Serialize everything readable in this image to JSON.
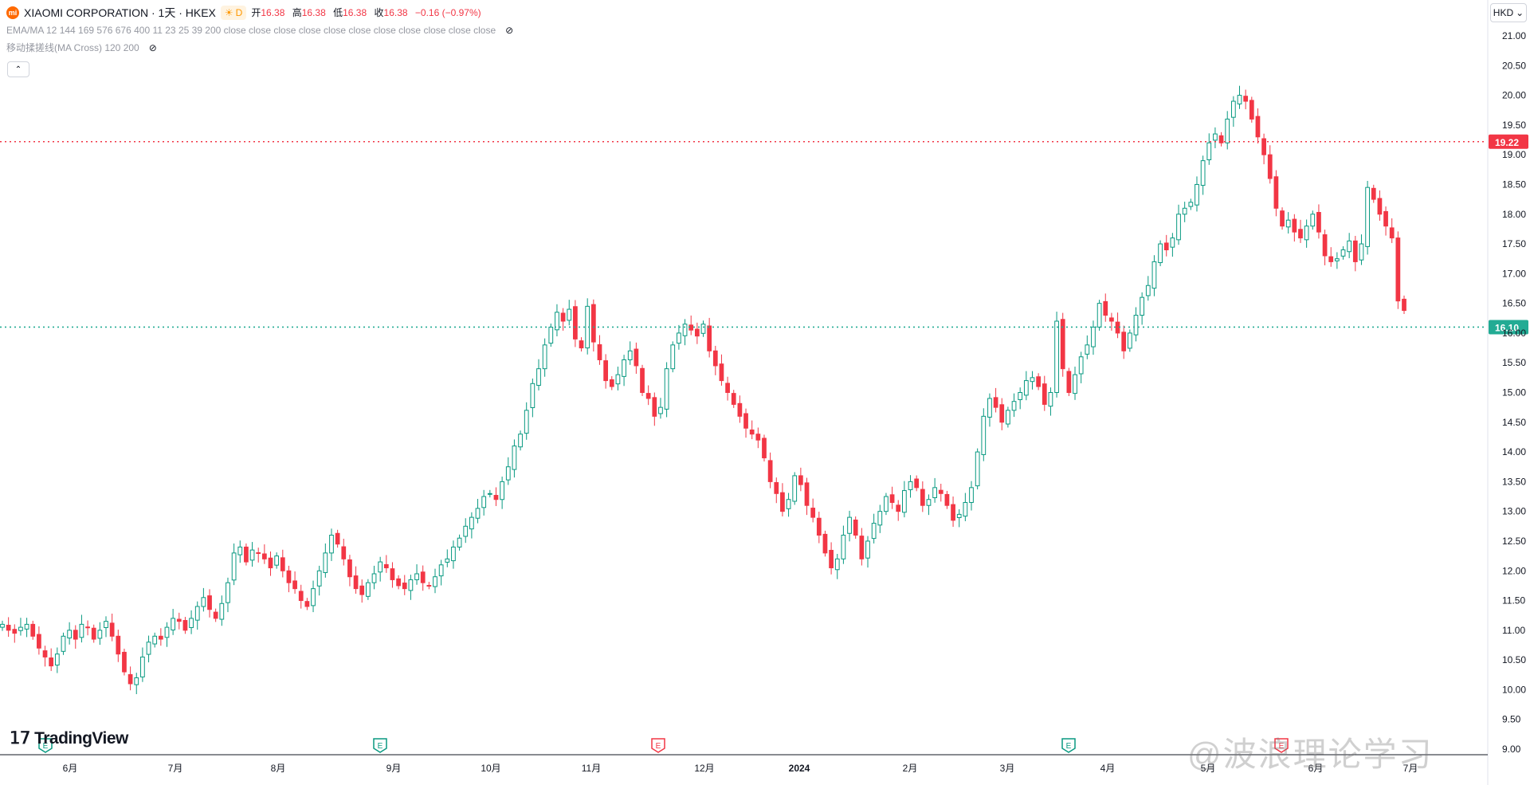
{
  "header": {
    "logo_text": "mi",
    "symbol_title": "XIAOMI CORPORATION · 1天 · HKEX",
    "badge_label": "D",
    "ohlc": {
      "open_label": "开",
      "open_value": "16.38",
      "high_label": "高",
      "high_value": "16.38",
      "low_label": "低",
      "low_value": "16.38",
      "close_label": "收",
      "close_value": "16.38",
      "change": "−0.16 (−0.97%)"
    },
    "indicator_1": "EMA/MA 12 144 169 576 676 400 11 23 25 39 200 close close close close close close close close close close close",
    "indicator_2": "移动揉搓线(MA Cross) 120 200",
    "collapse_symbol": "⌃",
    "currency_label": "HKD",
    "currency_chevron": "⌄",
    "eye_symbol": "⊘"
  },
  "branding": {
    "tradingview": "TradingView",
    "watermark": "@波浪理论学习"
  },
  "colors": {
    "up": "#089981",
    "down": "#f23645",
    "resistance": "#f23645",
    "support": "#089981"
  },
  "chart_data": {
    "type": "candlestick",
    "interval": "1天",
    "ylim": [
      9.0,
      21.5
    ],
    "y_ticks": [
      "21.00",
      "20.50",
      "20.00",
      "19.50",
      "19.00",
      "18.50",
      "18.00",
      "17.50",
      "17.00",
      "16.50",
      "16.00",
      "15.50",
      "15.00",
      "14.50",
      "14.00",
      "13.50",
      "13.00",
      "12.50",
      "12.00",
      "11.50",
      "11.00",
      "10.50",
      "10.00",
      "9.50",
      "9.00"
    ],
    "x_ticks": [
      "6月",
      "7月",
      "8月",
      "9月",
      "10月",
      "11月",
      "12月",
      "2024",
      "2月",
      "3月",
      "4月",
      "5月",
      "6月",
      "7月"
    ],
    "horizontal_lines": [
      {
        "value": 19.22,
        "label": "19.22",
        "color": "#f23645",
        "style": "dotted"
      },
      {
        "value": 16.1,
        "label": "16.10",
        "color": "#22ab94",
        "style": "dotted"
      }
    ],
    "event_markers": [
      {
        "label": "E",
        "near": "6月"
      },
      {
        "label": "E",
        "near": "9月"
      },
      {
        "label": "E",
        "near": "12月"
      },
      {
        "label": "E",
        "near": "4月"
      },
      {
        "label": "E",
        "near": "6月"
      }
    ],
    "closes": [
      11.1,
      11.0,
      10.95,
      11.05,
      11.1,
      10.9,
      10.7,
      10.55,
      10.4,
      10.6,
      10.9,
      11.0,
      10.85,
      11.1,
      11.05,
      10.85,
      11.0,
      11.15,
      10.9,
      10.6,
      10.3,
      10.1,
      10.2,
      10.55,
      10.8,
      10.9,
      10.85,
      11.05,
      11.2,
      11.15,
      11.0,
      11.2,
      11.4,
      11.55,
      11.35,
      11.2,
      11.45,
      11.8,
      12.3,
      12.4,
      12.15,
      12.35,
      12.3,
      12.2,
      12.05,
      12.25,
      12.0,
      11.8,
      11.7,
      11.5,
      11.4,
      11.7,
      12.0,
      12.3,
      12.6,
      12.45,
      12.2,
      11.9,
      11.7,
      11.6,
      11.8,
      11.95,
      12.15,
      12.05,
      11.85,
      11.75,
      11.7,
      11.85,
      11.95,
      11.8,
      11.75,
      11.9,
      12.1,
      12.2,
      12.4,
      12.55,
      12.75,
      12.9,
      13.05,
      13.25,
      13.3,
      13.2,
      13.5,
      13.75,
      14.1,
      14.3,
      14.7,
      15.15,
      15.4,
      15.8,
      16.1,
      16.35,
      16.2,
      16.4,
      15.9,
      15.75,
      16.45,
      15.85,
      15.55,
      15.2,
      15.1,
      15.3,
      15.55,
      15.7,
      15.45,
      15.0,
      14.9,
      14.6,
      14.75,
      15.4,
      15.8,
      16.0,
      16.15,
      16.05,
      15.95,
      16.15,
      15.7,
      15.45,
      15.2,
      15.0,
      14.8,
      14.6,
      14.4,
      14.3,
      14.2,
      13.9,
      13.5,
      13.3,
      13.0,
      13.2,
      13.6,
      13.45,
      13.1,
      12.9,
      12.6,
      12.3,
      12.05,
      12.2,
      12.6,
      12.9,
      12.6,
      12.2,
      12.5,
      12.8,
      13.0,
      13.25,
      13.15,
      13.0,
      13.35,
      13.5,
      13.4,
      13.1,
      13.2,
      13.4,
      13.3,
      13.1,
      12.85,
      12.95,
      13.15,
      13.4,
      14.0,
      14.6,
      14.9,
      14.75,
      14.5,
      14.7,
      14.85,
      15.0,
      15.2,
      15.25,
      15.1,
      14.8,
      15.0,
      16.2,
      15.4,
      15.0,
      15.3,
      15.6,
      15.8,
      16.1,
      16.5,
      16.3,
      16.2,
      16.0,
      15.7,
      16.0,
      16.3,
      16.6,
      16.8,
      17.2,
      17.5,
      17.4,
      17.6,
      18.0,
      18.1,
      18.2,
      18.5,
      18.9,
      19.2,
      19.35,
      19.2,
      19.6,
      19.9,
      20.0,
      19.9,
      19.6,
      19.3,
      19.0,
      18.6,
      18.1,
      17.8,
      17.9,
      17.7,
      17.6,
      17.8,
      18.0,
      17.7,
      17.3,
      17.2,
      17.25,
      17.4,
      17.55,
      17.2,
      17.5,
      18.45,
      18.25,
      18.0,
      17.8,
      17.6,
      16.54,
      16.38
    ]
  }
}
